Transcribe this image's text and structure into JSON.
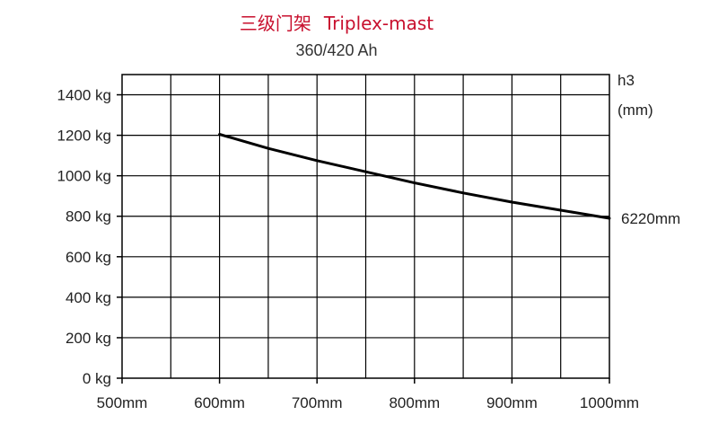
{
  "chart_data": {
    "type": "line",
    "title_cn": "三级门架",
    "title_en": "Triplex-mast",
    "subtitle": "360/420 Ah",
    "x_ticks": [
      "500mm",
      "600mm",
      "700mm",
      "800mm",
      "900mm",
      "1000mm"
    ],
    "y_ticks": [
      "0 kg",
      "200 kg",
      "400 kg",
      "600 kg",
      "800 kg",
      "1000 kg",
      "1200 kg",
      "1400 kg"
    ],
    "xlim": [
      500,
      1000
    ],
    "ylim": [
      0,
      1500
    ],
    "grid": true,
    "right_axis_label_line1": "h3",
    "right_axis_label_line2": "(mm)",
    "series": [
      {
        "name": "6220mm",
        "x": [
          600,
          650,
          700,
          750,
          800,
          850,
          900,
          950,
          1000
        ],
        "y": [
          1205,
          1135,
          1075,
          1020,
          965,
          915,
          870,
          830,
          790
        ]
      }
    ],
    "colors": {
      "title": "#c8102e",
      "line": "#000000",
      "grid": "#000000"
    }
  }
}
